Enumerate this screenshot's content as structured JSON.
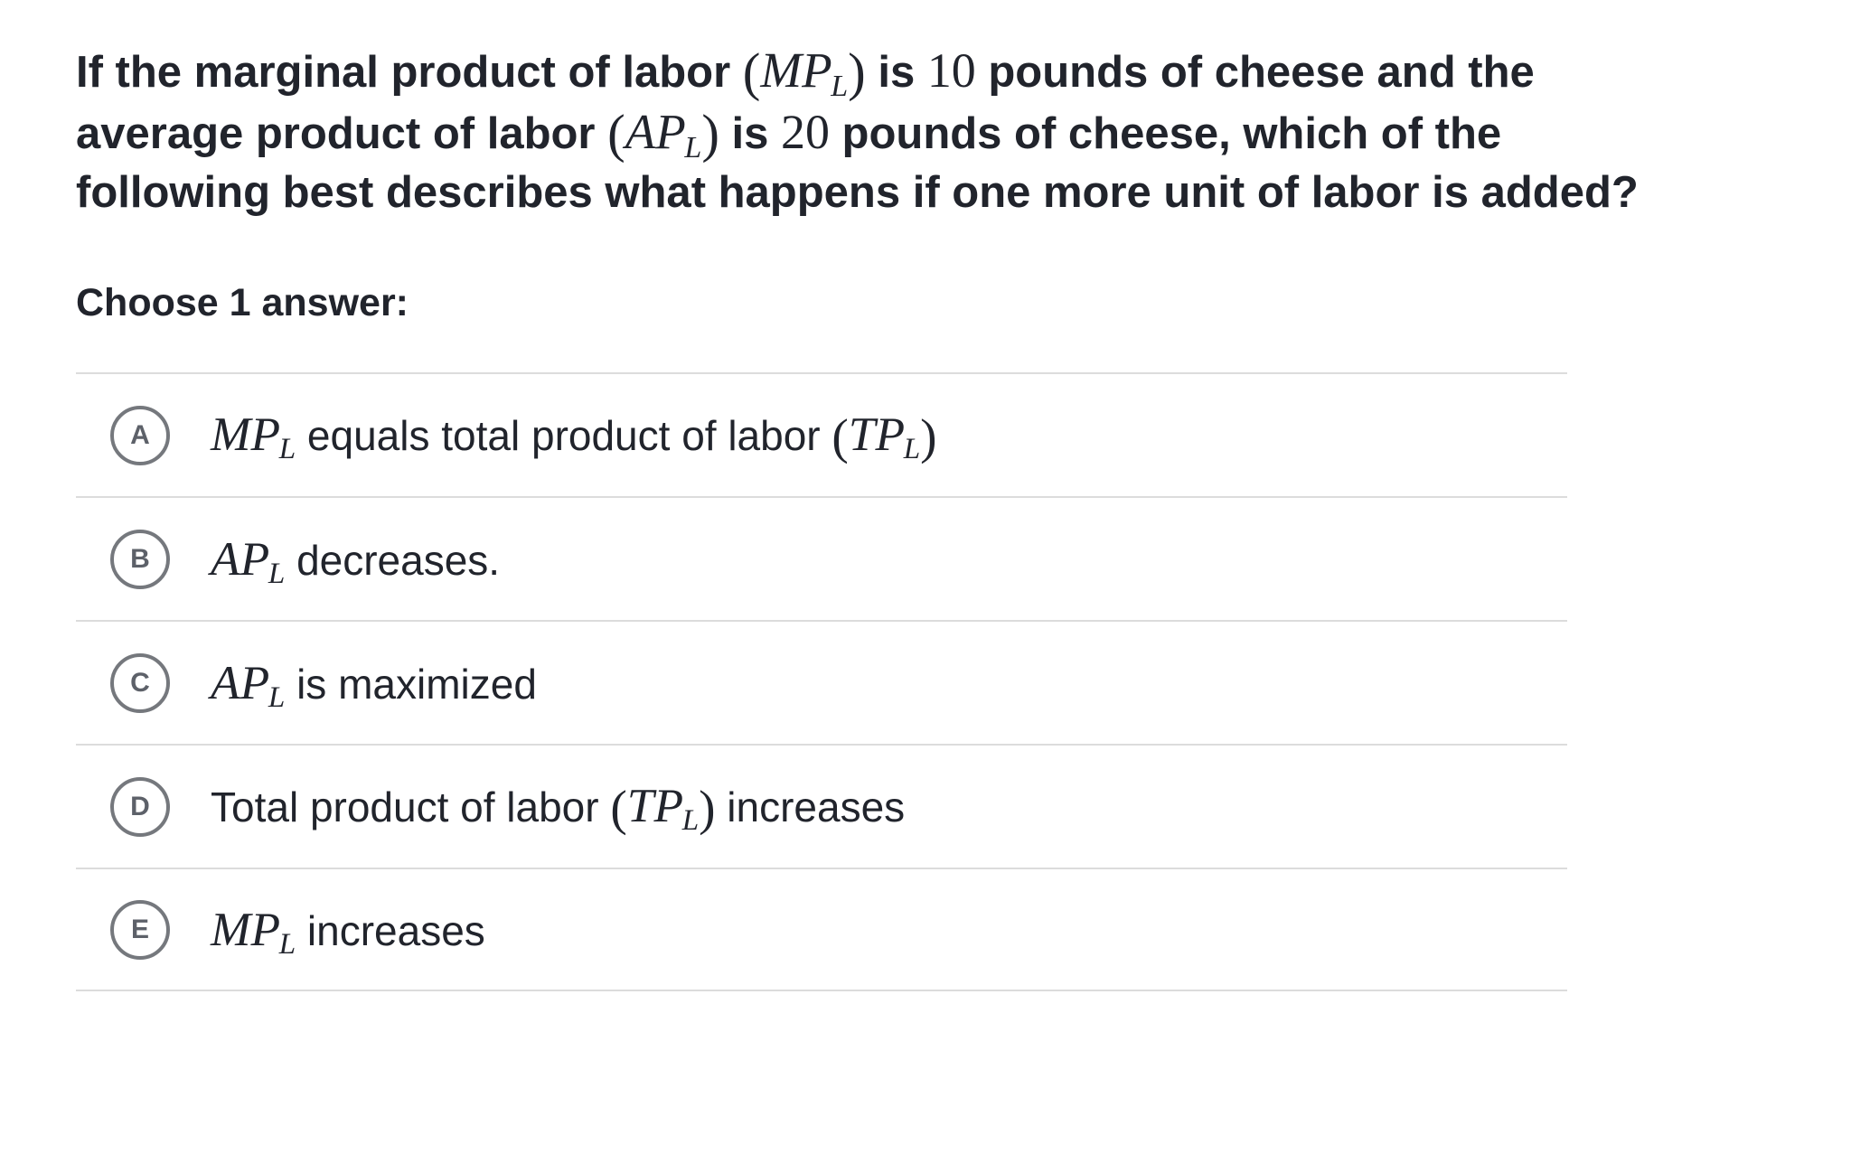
{
  "page": {
    "background": "#ffffff",
    "text_color": "#21242c",
    "divider_color": "#dcdcdc",
    "radio_border_color": "#75787d",
    "radio_letter_color": "#5d6169"
  },
  "question": {
    "lines": [
      [
        {
          "t": "If the marginal product of labor "
        },
        {
          "m": "MP",
          "s": "L",
          "p": true
        },
        {
          "t": " is "
        },
        {
          "n": "10"
        },
        {
          "t": " pounds of cheese and the"
        }
      ],
      [
        {
          "t": "average product of labor "
        },
        {
          "m": "AP",
          "s": "L",
          "p": true
        },
        {
          "t": " is "
        },
        {
          "n": "20"
        },
        {
          "t": " pounds of cheese, which of the"
        }
      ],
      [
        {
          "t": "following best describes what happens if one more unit of labor is added?"
        }
      ]
    ]
  },
  "prompt": {
    "label": "Choose 1 answer:"
  },
  "options": [
    {
      "letter": "A",
      "segments": [
        {
          "m": "MP",
          "s": "L"
        },
        {
          "t": " equals total product of labor "
        },
        {
          "m": "TP",
          "s": "L",
          "p": true
        }
      ]
    },
    {
      "letter": "B",
      "segments": [
        {
          "m": "AP",
          "s": "L"
        },
        {
          "t": " decreases."
        }
      ]
    },
    {
      "letter": "C",
      "segments": [
        {
          "m": "AP",
          "s": "L"
        },
        {
          "t": " is maximized"
        }
      ]
    },
    {
      "letter": "D",
      "segments": [
        {
          "t": "Total product of labor "
        },
        {
          "m": "TP",
          "s": "L",
          "p": true
        },
        {
          "t": " increases"
        }
      ]
    },
    {
      "letter": "E",
      "segments": [
        {
          "m": "MP",
          "s": "L"
        },
        {
          "t": " increases"
        }
      ]
    }
  ]
}
